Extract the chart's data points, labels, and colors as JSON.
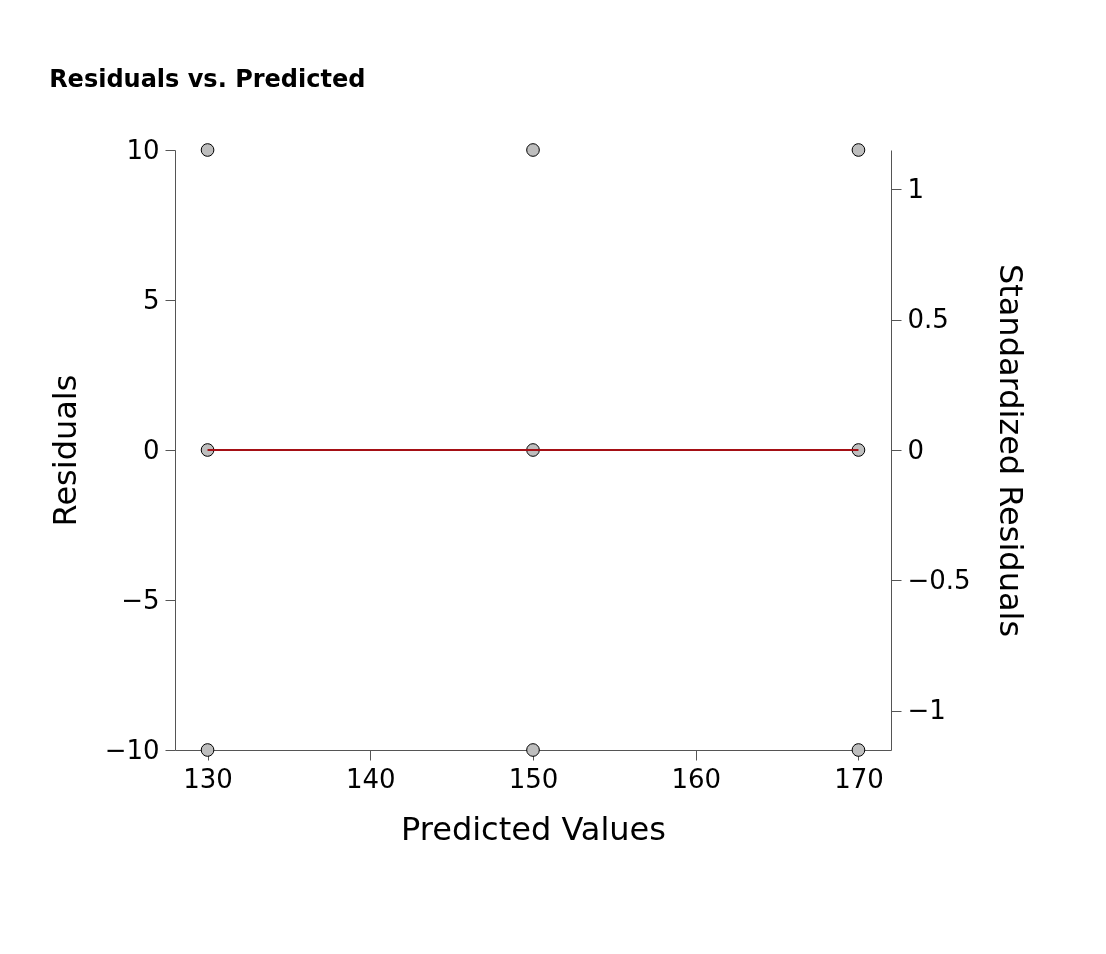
{
  "chart_data": {
    "type": "scatter",
    "title": "Residuals vs. Predicted",
    "xlabel": "Predicted Values",
    "ylabel": "Residuals",
    "y2label": "Standardized Residuals",
    "xlim": [
      128,
      172
    ],
    "xticks": [
      130,
      140,
      150,
      160,
      170
    ],
    "ylim": [
      -10,
      10
    ],
    "yticks": [
      -10,
      -5,
      0,
      5,
      10
    ],
    "y2lim": [
      -1.15,
      1.15
    ],
    "y2ticks": [
      -1,
      -0.5,
      0,
      0.5,
      1
    ],
    "grid": false,
    "series": [
      {
        "marker": "circle",
        "color": "#bebebe",
        "x": [
          130,
          130,
          130,
          150,
          150,
          150,
          170,
          170,
          170
        ],
        "values": [
          10,
          0,
          -10,
          10,
          0,
          -10,
          10,
          0,
          -10
        ]
      },
      {
        "type": "line",
        "color": "#a50f15",
        "x": [
          130,
          170
        ],
        "values": [
          0,
          0
        ]
      }
    ]
  }
}
